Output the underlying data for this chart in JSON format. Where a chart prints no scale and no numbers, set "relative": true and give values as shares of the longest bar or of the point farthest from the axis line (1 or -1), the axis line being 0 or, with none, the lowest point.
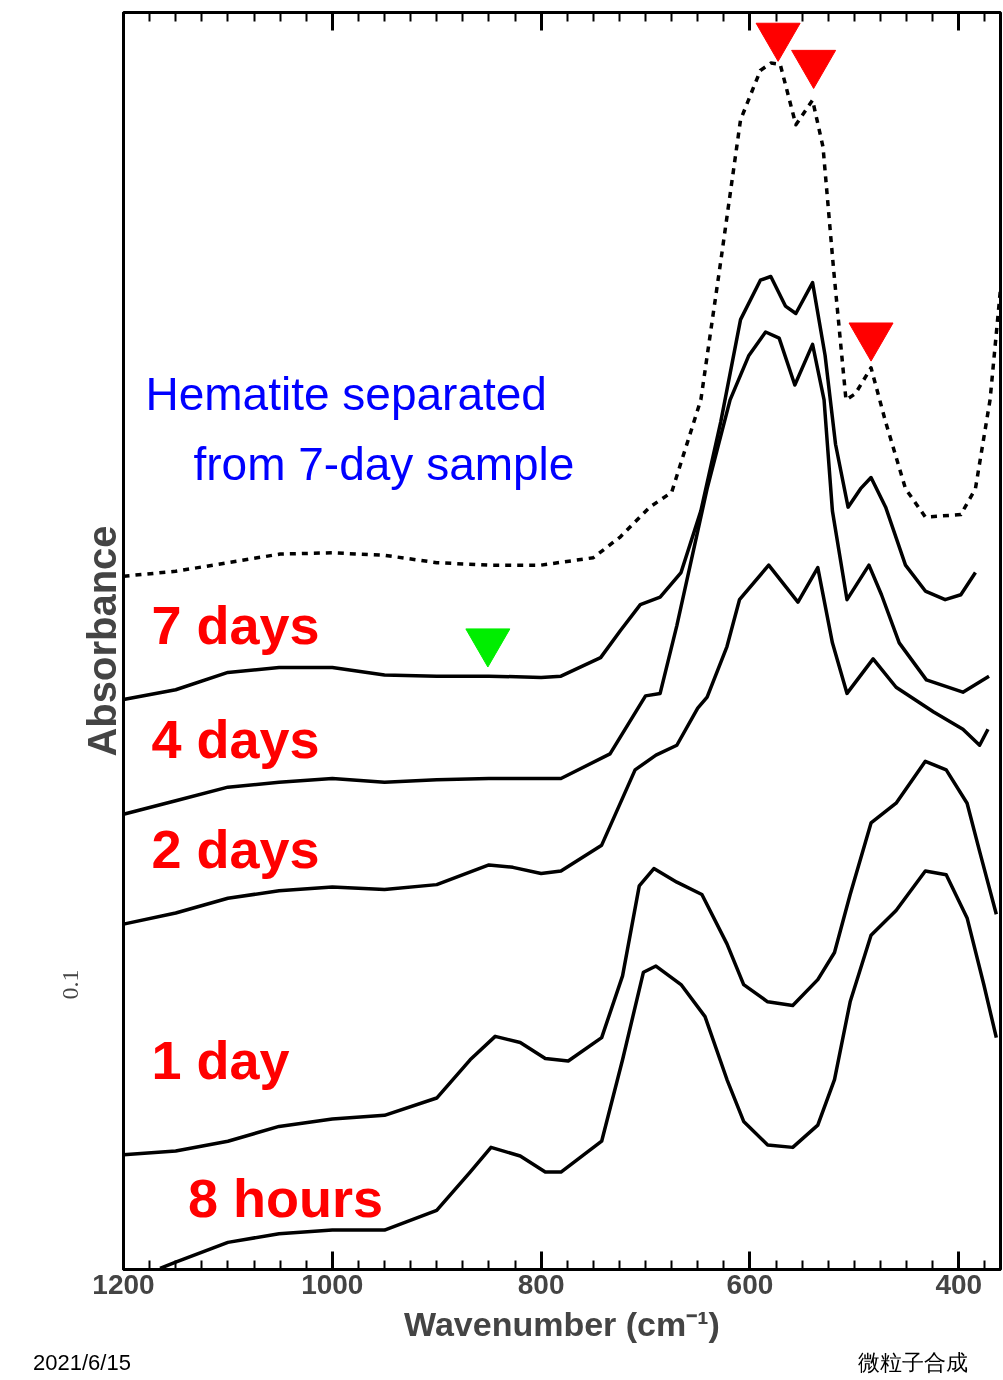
{
  "chart_data": {
    "type": "line",
    "relative": true,
    "xlabel": "Wavenumber (cm⁻¹)",
    "ylabel": "Absorbance",
    "xlim": [
      1200,
      360
    ],
    "xticks": [
      1200,
      1000,
      800,
      600,
      400
    ],
    "grid": false,
    "annotations": [
      "Hematite separated from 7-day sample",
      "0.1",
      "2021/6/15",
      "微粒子合成"
    ],
    "series": [
      {
        "color": "#000000",
        "line_style": "dashed",
        "x": [
          1200,
          1150,
          1100,
          1050,
          1000,
          950,
          900,
          850,
          800,
          750,
          724,
          696,
          675,
          647,
          628,
          609,
          590,
          580,
          571,
          556,
          540,
          530,
          520,
          508,
          499,
          484,
          470,
          451,
          432,
          398,
          384,
          370,
          360
        ],
        "values": [
          0.562,
          0.566,
          0.573,
          0.58,
          0.581,
          0.579,
          0.573,
          0.571,
          0.571,
          0.577,
          0.594,
          0.618,
          0.63,
          0.705,
          0.817,
          0.932,
          0.972,
          0.978,
          0.977,
          0.928,
          0.948,
          0.91,
          0.812,
          0.705,
          0.71,
          0.731,
          0.687,
          0.633,
          0.61,
          0.612,
          0.633,
          0.705,
          0.795
        ]
      },
      {
        "name": "7 days",
        "color": "#000000",
        "line_style": "solid",
        "x": [
          1200,
          1150,
          1100,
          1051,
          1000,
          950,
          900,
          850,
          800,
          781,
          743,
          724,
          705,
          686,
          666,
          647,
          628,
          609,
          590,
          580,
          566,
          556,
          540,
          528,
          518,
          506,
          494,
          484,
          470,
          451,
          432,
          413,
          398,
          384
        ],
        "values": [
          0.462,
          0.47,
          0.484,
          0.488,
          0.488,
          0.482,
          0.481,
          0.481,
          0.48,
          0.481,
          0.496,
          0.518,
          0.539,
          0.545,
          0.565,
          0.615,
          0.687,
          0.77,
          0.802,
          0.805,
          0.781,
          0.775,
          0.8,
          0.741,
          0.669,
          0.618,
          0.633,
          0.642,
          0.618,
          0.571,
          0.55,
          0.543,
          0.547,
          0.565
        ]
      },
      {
        "name": "4 days",
        "color": "#000000",
        "line_style": "solid",
        "x": [
          1200,
          1150,
          1100,
          1051,
          1000,
          950,
          900,
          850,
          800,
          781,
          734,
          700,
          686,
          670,
          641,
          619,
          601,
          585,
          572,
          557,
          540,
          529,
          521,
          507,
          486,
          474,
          457,
          431,
          396,
          371
        ],
        "values": [
          0.369,
          0.38,
          0.391,
          0.395,
          0.398,
          0.395,
          0.397,
          0.398,
          0.398,
          0.398,
          0.418,
          0.465,
          0.467,
          0.522,
          0.633,
          0.705,
          0.741,
          0.76,
          0.755,
          0.717,
          0.75,
          0.705,
          0.615,
          0.543,
          0.571,
          0.547,
          0.508,
          0.478,
          0.468,
          0.481
        ]
      },
      {
        "name": "2 days",
        "color": "#000000",
        "line_style": "solid",
        "x": [
          1200,
          1150,
          1100,
          1051,
          1000,
          950,
          900,
          850,
          827,
          800,
          781,
          742,
          710,
          690,
          670,
          650,
          641,
          622,
          610,
          582,
          554,
          535,
          521,
          507,
          482,
          460,
          424,
          396,
          380,
          372
        ],
        "values": [
          0.28,
          0.289,
          0.301,
          0.307,
          0.31,
          0.308,
          0.312,
          0.328,
          0.326,
          0.321,
          0.323,
          0.344,
          0.405,
          0.417,
          0.425,
          0.455,
          0.464,
          0.505,
          0.543,
          0.571,
          0.541,
          0.569,
          0.508,
          0.467,
          0.495,
          0.472,
          0.452,
          0.438,
          0.425,
          0.438
        ]
      },
      {
        "name": "1 day",
        "color": "#000000",
        "line_style": "solid",
        "x": [
          1200,
          1150,
          1100,
          1051,
          1000,
          950,
          900,
          868,
          844,
          820,
          796,
          774,
          742,
          722,
          706,
          692,
          670,
          646,
          622,
          606,
          583,
          559,
          535,
          519,
          504,
          484,
          460,
          432,
          412,
          392,
          380,
          364
        ],
        "values": [
          0.093,
          0.096,
          0.104,
          0.116,
          0.122,
          0.125,
          0.139,
          0.17,
          0.189,
          0.184,
          0.171,
          0.169,
          0.188,
          0.238,
          0.311,
          0.325,
          0.314,
          0.304,
          0.264,
          0.231,
          0.217,
          0.214,
          0.235,
          0.257,
          0.304,
          0.362,
          0.378,
          0.412,
          0.405,
          0.378,
          0.339,
          0.288
        ]
      },
      {
        "name": "8 hours",
        "color": "#000000",
        "line_style": "solid",
        "x": [
          1165,
          1150,
          1100,
          1051,
          1000,
          950,
          900,
          868,
          848,
          820,
          796,
          781,
          742,
          722,
          702,
          690,
          666,
          643,
          622,
          606,
          583,
          559,
          535,
          519,
          504,
          484,
          460,
          432,
          412,
          392,
          376,
          364
        ],
        "values": [
          0.001,
          0.006,
          0.022,
          0.029,
          0.032,
          0.032,
          0.048,
          0.079,
          0.099,
          0.092,
          0.079,
          0.079,
          0.104,
          0.17,
          0.241,
          0.246,
          0.231,
          0.205,
          0.154,
          0.12,
          0.101,
          0.099,
          0.117,
          0.154,
          0.217,
          0.271,
          0.291,
          0.323,
          0.32,
          0.285,
          0.231,
          0.188
        ]
      },
      {
        "type": "scatter",
        "marker": "triangle",
        "color": "#ff0000",
        "x": [
          573,
          539,
          484
        ],
        "values": [
          1.0,
          0.978,
          0.757
        ]
      },
      {
        "type": "scatter",
        "marker": "triangle",
        "color": "#00ee00",
        "x": [
          851
        ],
        "values": [
          0.509
        ]
      }
    ]
  }
}
